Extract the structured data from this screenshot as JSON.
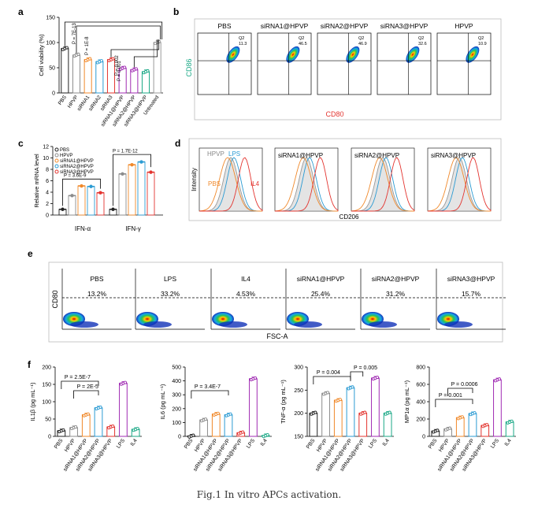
{
  "caption": "Fig.1 In vitro APCs activation.",
  "panel_letters": {
    "a": "a",
    "b": "b",
    "c": "c",
    "d": "d",
    "e": "e",
    "f": "f"
  },
  "colors": {
    "PBS": "#222222",
    "HPVP": "#8c8c8c",
    "siRNA1@HPVP": "#f0892b",
    "siRNA2@HPVP": "#2b9bd3",
    "siRNA3@HPVP": "#e3342f",
    "LPS": "#a02bb3",
    "IL4": "#1aa886",
    "Untreated": "#9a9a9a"
  },
  "chart_data": [
    {
      "panel": "a",
      "type": "bar",
      "categories": [
        "PBS",
        "HPVP",
        "siRNA1",
        "siRNA2",
        "siRNA3",
        "siRNA1@HPVP",
        "siRNA2@HPVP",
        "siRNA3@HPVP",
        "Untreated"
      ],
      "values": [
        88,
        75,
        66,
        62,
        66,
        49,
        46,
        42,
        100
      ],
      "ylabel": "Cell viability (%)",
      "ylim": [
        0,
        150
      ],
      "yticks": [
        0,
        50,
        100,
        150
      ],
      "annotations": [
        "P = 7E-13",
        "P = 1E-8",
        "P = 0.002",
        "P = 0.001"
      ]
    },
    {
      "panel": "c",
      "type": "bar",
      "categories": [
        "IFN-α",
        "IFN-γ"
      ],
      "series": [
        {
          "name": "PBS",
          "values": [
            1.0,
            1.0
          ]
        },
        {
          "name": "HPVP",
          "values": [
            3.4,
            7.2
          ]
        },
        {
          "name": "siRNA1@HPVP",
          "values": [
            5.1,
            8.8
          ]
        },
        {
          "name": "siRNA2@HPVP",
          "values": [
            5.0,
            9.3
          ]
        },
        {
          "name": "siRNA3@HPVP",
          "values": [
            3.9,
            7.5
          ]
        }
      ],
      "ylabel": "Relative mRNA level",
      "ylim": [
        0,
        12
      ],
      "yticks": [
        0,
        2,
        4,
        6,
        8,
        10,
        12
      ],
      "annotations": [
        "P = 3.6E-9",
        "P = 1.7E-12"
      ]
    },
    {
      "panel": "f",
      "type": "bar",
      "categories": [
        "PBS",
        "HPVP",
        "siRNA1@HPVP",
        "siRNA2@HPVP",
        "siRNA3@HPVP",
        "LPS",
        "IL4"
      ],
      "values": [
        16,
        25,
        62,
        82,
        27,
        153,
        20
      ],
      "ylabel": "IL1β (pg mL⁻¹)",
      "ylim": [
        0,
        200
      ],
      "yticks": [
        0,
        50,
        100,
        150,
        200
      ],
      "annotations": [
        "P = 2.5E-7",
        "P = 2E-5"
      ]
    },
    {
      "panel": "f",
      "type": "bar",
      "categories": [
        "PBS",
        "HPVP",
        "siRNA1@HPVP",
        "siRNA2@HPVP",
        "siRNA3@HPVP",
        "LPS",
        "IL4"
      ],
      "values": [
        2,
        118,
        160,
        155,
        25,
        415,
        5
      ],
      "ylabel": "IL6 (pg mL⁻¹)",
      "ylim": [
        0,
        500
      ],
      "yticks": [
        0,
        100,
        200,
        300,
        400,
        500
      ],
      "annotations": [
        "P = 3.4E-7"
      ]
    },
    {
      "panel": "f",
      "type": "bar",
      "categories": [
        "PBS",
        "HPVP",
        "siRNA1@HPVP",
        "siRNA2@HPVP",
        "siRNA3@HPVP",
        "LPS",
        "IL4"
      ],
      "values": [
        200,
        243,
        228,
        255,
        200,
        276,
        200
      ],
      "ylabel": "TNF-α (pg mL⁻¹)",
      "ylim": [
        150,
        300
      ],
      "yticks": [
        150,
        200,
        250,
        300
      ],
      "annotations": [
        "P = 0.004",
        "P = 0.005"
      ]
    },
    {
      "panel": "f",
      "type": "bar",
      "categories": [
        "PBS",
        "HPVP",
        "siRNA1@HPVP",
        "siRNA2@HPVP",
        "siRNA3@HPVP",
        "LPS",
        "IL4"
      ],
      "values": [
        60,
        85,
        215,
        262,
        125,
        652,
        165
      ],
      "ylabel": "MP1α (pg mL⁻¹)",
      "ylim": [
        0,
        800
      ],
      "yticks": [
        0,
        200,
        400,
        600,
        800
      ],
      "annotations": [
        "P = 0.001",
        "P = 0.0006"
      ]
    }
  ],
  "panel_b": {
    "groups": [
      "PBS",
      "siRNA1@HPVP",
      "siRNA2@HPVP",
      "siRNA3@HPVP",
      "HPVP"
    ],
    "q2_label": "Q2",
    "q2_values": [
      "11.3",
      "46.5",
      "46.9",
      "32.6",
      "10.9"
    ],
    "xlabel": "CD80",
    "ylabel": "CD86"
  },
  "panel_d": {
    "titles": [
      "siRNA1@HPVP",
      "siRNA2@HPVP",
      "siRNA3@HPVP"
    ],
    "legend": {
      "HPVP": "HPVP",
      "LPS": "LPS",
      "PBS": "PBS",
      "IL4": "IL4"
    },
    "xlabel": "CD206",
    "ylabel": "Intensity"
  },
  "panel_e": {
    "groups": [
      "PBS",
      "LPS",
      "IL4",
      "siRNA1@HPVP",
      "siRNA2@HPVP",
      "siRNA3@HPVP"
    ],
    "percents": [
      "13.2%",
      "33.2%",
      "4.53%",
      "25.4%",
      "31.2%",
      "15.7%"
    ],
    "xlabel": "FSC-A",
    "ylabel": "CD80"
  }
}
